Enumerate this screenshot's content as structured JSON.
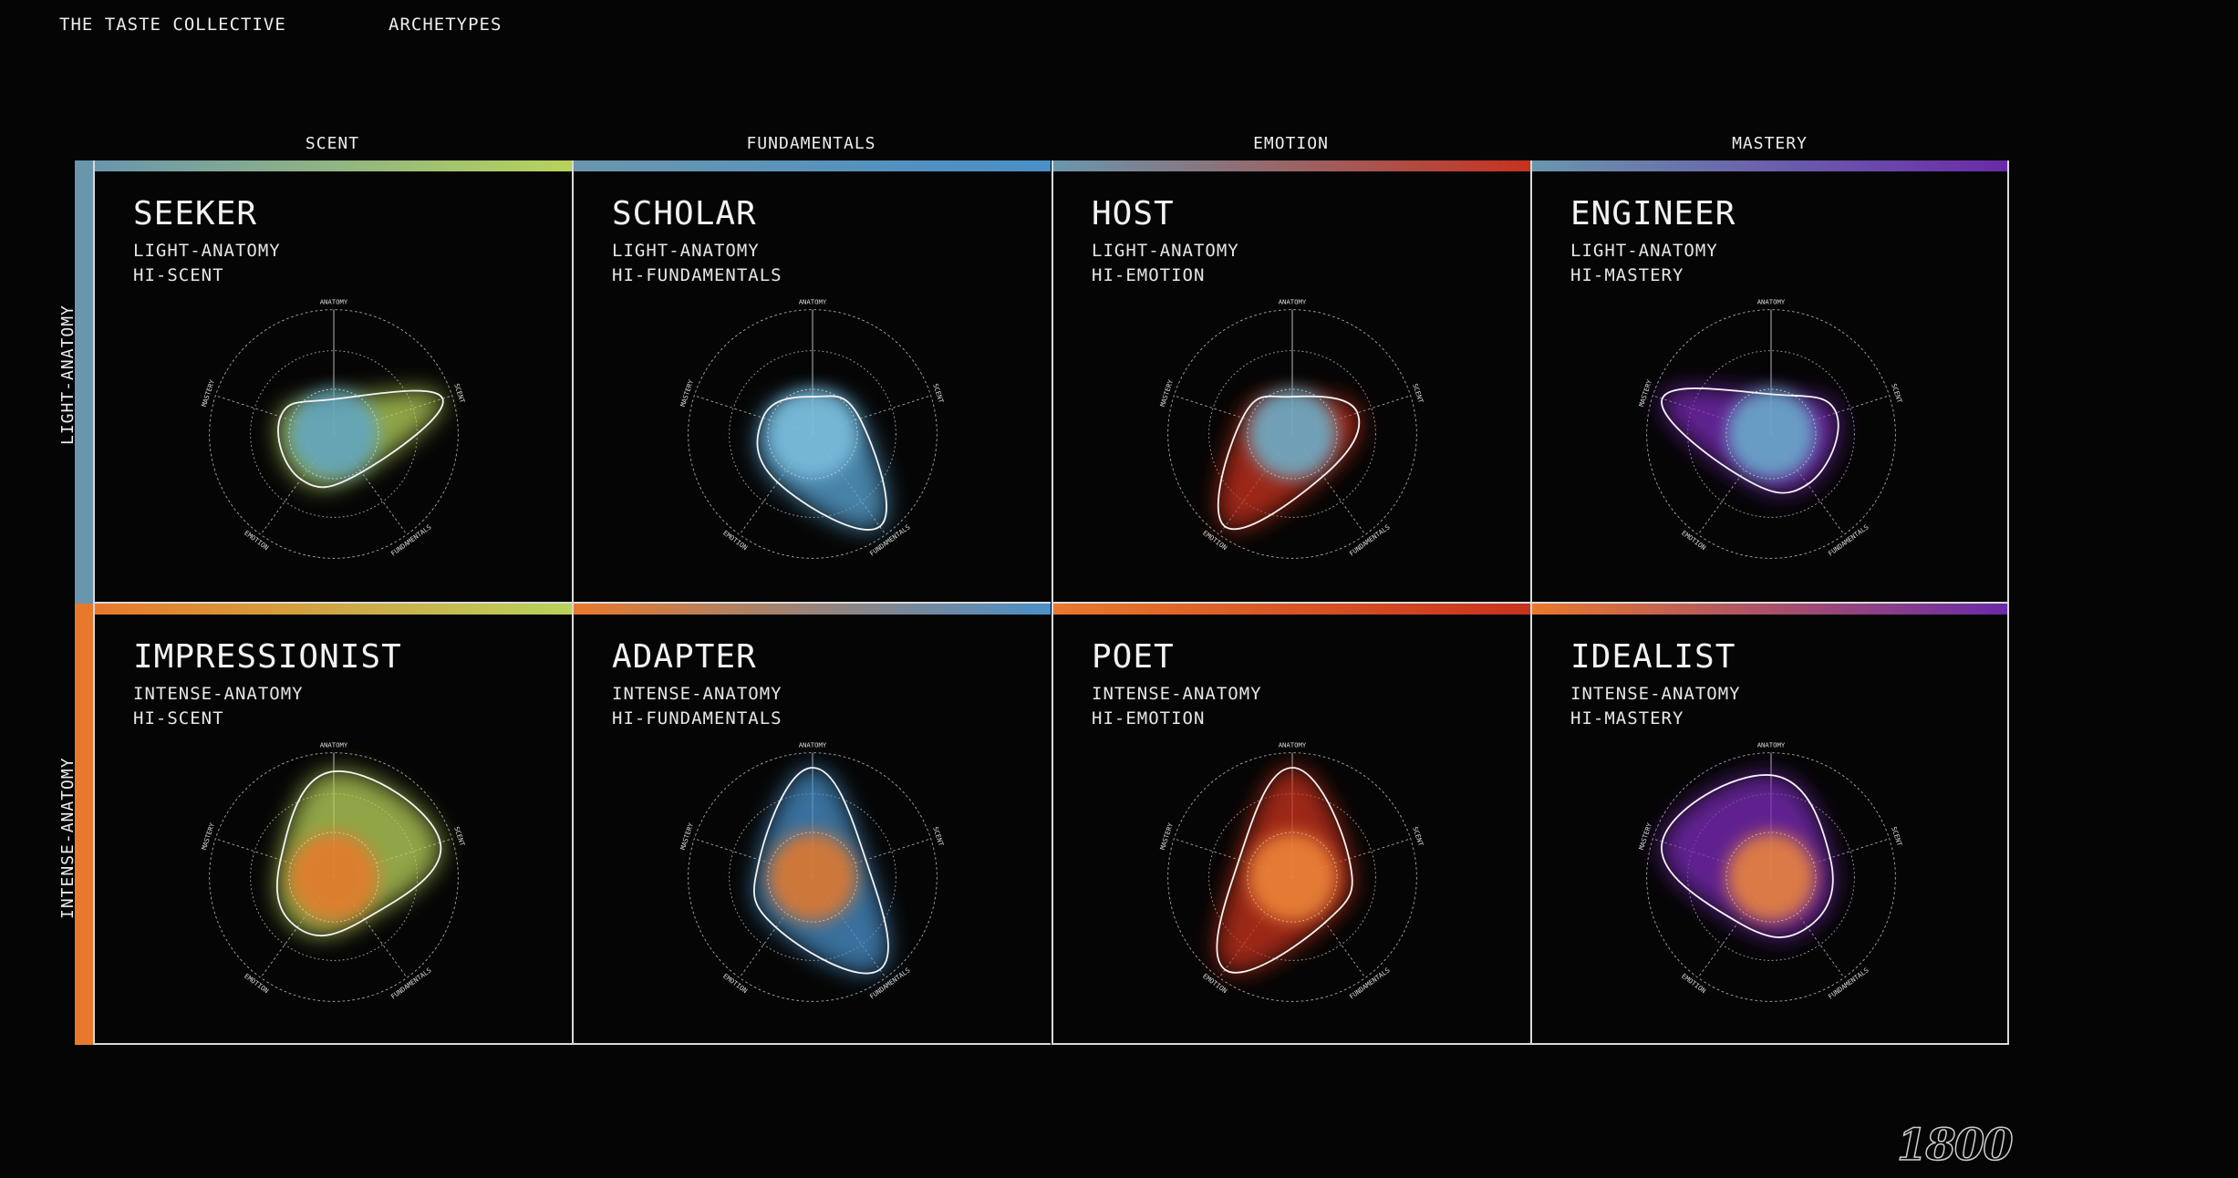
{
  "header": {
    "collective": "THE TASTE COLLECTIVE",
    "section": "ARCHETYPES"
  },
  "columns": [
    "SCENT",
    "FUNDAMENTALS",
    "EMOTION",
    "MASTERY"
  ],
  "rows": [
    "LIGHT-ANATOMY",
    "INTENSE-ANATOMY"
  ],
  "axes": [
    "ANATOMY",
    "SCENT",
    "FUNDAMENTALS",
    "EMOTION",
    "MASTERY"
  ],
  "colors": {
    "anatomy_light": "#6a96ad",
    "anatomy_intense": "#e8792c",
    "scent": "#b7d35a",
    "fundamentals": "#4a8fc8",
    "emotion": "#c8321e",
    "mastery": "#6a2aa8"
  },
  "archetypes": [
    {
      "name": "SEEKER",
      "anatomy": "LIGHT-ANATOMY",
      "focus": "HI-SCENT",
      "values": [
        0.28,
        0.92,
        0.38,
        0.45,
        0.45
      ],
      "color": "#b7d35a",
      "core": "#5fa6c8"
    },
    {
      "name": "SCHOLAR",
      "anatomy": "LIGHT-ANATOMY",
      "focus": "HI-FUNDAMENTALS",
      "values": [
        0.3,
        0.4,
        0.92,
        0.48,
        0.42
      ],
      "color": "#5aa6d6",
      "core": "#7fc0de"
    },
    {
      "name": "HOST",
      "anatomy": "LIGHT-ANATOMY",
      "focus": "HI-EMOTION",
      "values": [
        0.3,
        0.55,
        0.42,
        0.92,
        0.42
      ],
      "color": "#c8321e",
      "core": "#6ab6d2"
    },
    {
      "name": "ENGINEER",
      "anatomy": "LIGHT-ANATOMY",
      "focus": "HI-MASTERY",
      "values": [
        0.32,
        0.55,
        0.5,
        0.42,
        0.92
      ],
      "color": "#7a2ab8",
      "core": "#6ab2cf"
    },
    {
      "name": "IMPRESSIONIST",
      "anatomy": "INTENSE-ANATOMY",
      "focus": "HI-SCENT",
      "values": [
        0.85,
        0.9,
        0.42,
        0.5,
        0.45
      ],
      "color": "#b7d35a",
      "core": "#e8792c"
    },
    {
      "name": "ADAPTER",
      "anatomy": "INTENSE-ANATOMY",
      "focus": "HI-FUNDAMENTALS",
      "values": [
        0.88,
        0.45,
        0.92,
        0.5,
        0.45
      ],
      "color": "#4a8fc8",
      "core": "#e8792c"
    },
    {
      "name": "POET",
      "anatomy": "INTENSE-ANATOMY",
      "focus": "HI-EMOTION",
      "values": [
        0.88,
        0.48,
        0.45,
        0.92,
        0.45
      ],
      "color": "#c8321e",
      "core": "#f08a3a"
    },
    {
      "name": "IDEALIST",
      "anatomy": "INTENSE-ANATOMY",
      "focus": "HI-MASTERY",
      "values": [
        0.82,
        0.5,
        0.5,
        0.45,
        0.92
      ],
      "color": "#7a2ab8",
      "core": "#f08a3a"
    }
  ],
  "logo": "1800"
}
